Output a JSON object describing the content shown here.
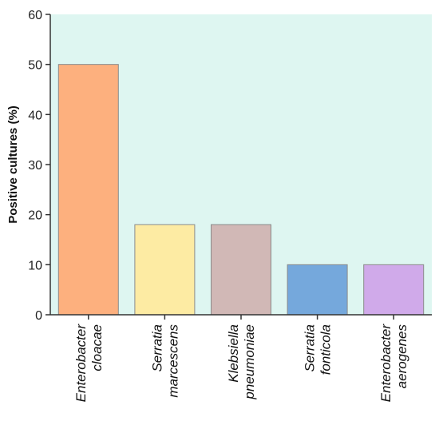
{
  "chart_data": {
    "type": "bar",
    "categories": [
      [
        "Enterobacter",
        "cloacae"
      ],
      [
        "Serratia",
        "marcescens"
      ],
      [
        "Klebsiella",
        "pneumoniae"
      ],
      [
        "Serratia",
        "fonticola"
      ],
      [
        "Enterobacter",
        "aerogenes"
      ]
    ],
    "values": [
      50,
      18,
      18,
      10,
      10
    ],
    "bar_colors": [
      "#fdb07e",
      "#fdeba3",
      "#d1b8b6",
      "#75a8dc",
      "#d0aaea"
    ],
    "title": "",
    "xlabel": "",
    "ylabel": "Positive cultures (%)",
    "ylim": [
      0,
      60
    ],
    "yticks": [
      0,
      10,
      20,
      30,
      40,
      50,
      60
    ],
    "plot_background": "#def6f1",
    "grid": false,
    "legend": "none"
  }
}
